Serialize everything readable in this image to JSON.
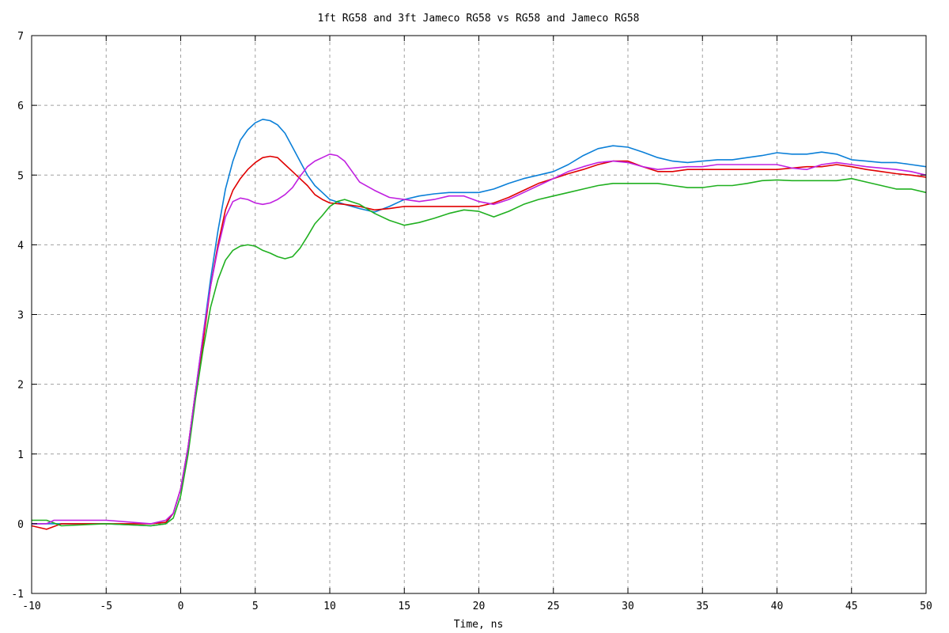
{
  "chart_data": {
    "type": "line",
    "title": "1ft RG58 and 3ft Jameco RG58 vs RG58 and Jameco RG58",
    "xlabel": "Time, ns",
    "ylabel": "",
    "xlim": [
      -10,
      50
    ],
    "ylim": [
      -1,
      7
    ],
    "x_ticks": [
      "-10",
      "-5",
      "0",
      "5",
      "10",
      "15",
      "20",
      "25",
      "30",
      "35",
      "40",
      "45",
      "50"
    ],
    "y_ticks": [
      "-1",
      "0",
      "1",
      "2",
      "3",
      "4",
      "5",
      "6",
      "7"
    ],
    "grid": true,
    "legend": "none",
    "series": [
      {
        "color": "#0a7fd8",
        "points": [
          [
            -10,
            0.0
          ],
          [
            -5,
            0.0
          ],
          [
            -2,
            -0.03
          ],
          [
            -1,
            0.0
          ],
          [
            -0.5,
            0.15
          ],
          [
            0,
            0.5
          ],
          [
            0.5,
            1.1
          ],
          [
            1,
            1.9
          ],
          [
            1.5,
            2.7
          ],
          [
            2,
            3.5
          ],
          [
            2.5,
            4.2
          ],
          [
            3,
            4.8
          ],
          [
            3.5,
            5.2
          ],
          [
            4,
            5.5
          ],
          [
            4.5,
            5.65
          ],
          [
            5,
            5.75
          ],
          [
            5.5,
            5.8
          ],
          [
            6,
            5.78
          ],
          [
            6.5,
            5.72
          ],
          [
            7,
            5.6
          ],
          [
            7.5,
            5.4
          ],
          [
            8,
            5.2
          ],
          [
            8.5,
            5.0
          ],
          [
            9,
            4.85
          ],
          [
            9.5,
            4.75
          ],
          [
            10,
            4.65
          ],
          [
            11,
            4.58
          ],
          [
            12,
            4.52
          ],
          [
            13,
            4.47
          ],
          [
            14,
            4.55
          ],
          [
            15,
            4.65
          ],
          [
            16,
            4.7
          ],
          [
            17,
            4.73
          ],
          [
            18,
            4.75
          ],
          [
            19,
            4.75
          ],
          [
            20,
            4.75
          ],
          [
            21,
            4.8
          ],
          [
            22,
            4.88
          ],
          [
            23,
            4.95
          ],
          [
            24,
            5.0
          ],
          [
            25,
            5.05
          ],
          [
            26,
            5.15
          ],
          [
            27,
            5.28
          ],
          [
            28,
            5.38
          ],
          [
            29,
            5.42
          ],
          [
            30,
            5.4
          ],
          [
            31,
            5.33
          ],
          [
            32,
            5.25
          ],
          [
            33,
            5.2
          ],
          [
            34,
            5.18
          ],
          [
            35,
            5.2
          ],
          [
            36,
            5.22
          ],
          [
            37,
            5.22
          ],
          [
            38,
            5.25
          ],
          [
            39,
            5.28
          ],
          [
            40,
            5.32
          ],
          [
            41,
            5.3
          ],
          [
            42,
            5.3
          ],
          [
            43,
            5.33
          ],
          [
            44,
            5.3
          ],
          [
            45,
            5.22
          ],
          [
            46,
            5.2
          ],
          [
            47,
            5.18
          ],
          [
            48,
            5.18
          ],
          [
            49,
            5.15
          ],
          [
            50,
            5.12
          ]
        ]
      },
      {
        "color": "#e00000",
        "points": [
          [
            -10,
            -0.03
          ],
          [
            -9,
            -0.08
          ],
          [
            -8,
            0.0
          ],
          [
            -5,
            0.0
          ],
          [
            -2,
            0.0
          ],
          [
            -1,
            0.02
          ],
          [
            -0.5,
            0.15
          ],
          [
            0,
            0.5
          ],
          [
            0.5,
            1.1
          ],
          [
            1,
            1.9
          ],
          [
            1.5,
            2.6
          ],
          [
            2,
            3.4
          ],
          [
            2.5,
            4.0
          ],
          [
            3,
            4.5
          ],
          [
            3.5,
            4.78
          ],
          [
            4,
            4.95
          ],
          [
            4.5,
            5.08
          ],
          [
            5,
            5.18
          ],
          [
            5.5,
            5.25
          ],
          [
            6,
            5.27
          ],
          [
            6.5,
            5.25
          ],
          [
            7,
            5.15
          ],
          [
            7.5,
            5.05
          ],
          [
            8,
            4.95
          ],
          [
            8.5,
            4.85
          ],
          [
            9,
            4.72
          ],
          [
            9.5,
            4.65
          ],
          [
            10,
            4.6
          ],
          [
            11,
            4.58
          ],
          [
            12,
            4.55
          ],
          [
            13,
            4.5
          ],
          [
            14,
            4.52
          ],
          [
            15,
            4.55
          ],
          [
            16,
            4.55
          ],
          [
            17,
            4.55
          ],
          [
            18,
            4.55
          ],
          [
            19,
            4.55
          ],
          [
            20,
            4.55
          ],
          [
            21,
            4.6
          ],
          [
            22,
            4.68
          ],
          [
            23,
            4.78
          ],
          [
            24,
            4.88
          ],
          [
            25,
            4.95
          ],
          [
            26,
            5.02
          ],
          [
            27,
            5.08
          ],
          [
            28,
            5.15
          ],
          [
            29,
            5.2
          ],
          [
            30,
            5.2
          ],
          [
            31,
            5.12
          ],
          [
            32,
            5.05
          ],
          [
            33,
            5.05
          ],
          [
            34,
            5.08
          ],
          [
            35,
            5.08
          ],
          [
            36,
            5.08
          ],
          [
            37,
            5.08
          ],
          [
            38,
            5.08
          ],
          [
            39,
            5.08
          ],
          [
            40,
            5.08
          ],
          [
            41,
            5.1
          ],
          [
            42,
            5.12
          ],
          [
            43,
            5.12
          ],
          [
            44,
            5.15
          ],
          [
            45,
            5.12
          ],
          [
            46,
            5.08
          ],
          [
            47,
            5.05
          ],
          [
            48,
            5.02
          ],
          [
            49,
            5.0
          ],
          [
            50,
            4.97
          ]
        ]
      },
      {
        "color": "#20b020",
        "points": [
          [
            -10,
            0.05
          ],
          [
            -9,
            0.05
          ],
          [
            -8,
            -0.03
          ],
          [
            -5,
            0.0
          ],
          [
            -2,
            -0.03
          ],
          [
            -1,
            0.0
          ],
          [
            -0.5,
            0.08
          ],
          [
            0,
            0.4
          ],
          [
            0.5,
            1.0
          ],
          [
            1,
            1.8
          ],
          [
            1.5,
            2.5
          ],
          [
            2,
            3.1
          ],
          [
            2.5,
            3.5
          ],
          [
            3,
            3.78
          ],
          [
            3.5,
            3.92
          ],
          [
            4,
            3.98
          ],
          [
            4.5,
            4.0
          ],
          [
            5,
            3.98
          ],
          [
            5.5,
            3.92
          ],
          [
            6,
            3.88
          ],
          [
            6.5,
            3.83
          ],
          [
            7,
            3.8
          ],
          [
            7.5,
            3.83
          ],
          [
            8,
            3.95
          ],
          [
            8.5,
            4.12
          ],
          [
            9,
            4.3
          ],
          [
            9.5,
            4.42
          ],
          [
            10,
            4.55
          ],
          [
            10.5,
            4.62
          ],
          [
            11,
            4.65
          ],
          [
            12,
            4.58
          ],
          [
            13,
            4.45
          ],
          [
            14,
            4.35
          ],
          [
            15,
            4.28
          ],
          [
            16,
            4.32
          ],
          [
            17,
            4.38
          ],
          [
            18,
            4.45
          ],
          [
            19,
            4.5
          ],
          [
            20,
            4.48
          ],
          [
            21,
            4.4
          ],
          [
            22,
            4.48
          ],
          [
            23,
            4.58
          ],
          [
            24,
            4.65
          ],
          [
            25,
            4.7
          ],
          [
            26,
            4.75
          ],
          [
            27,
            4.8
          ],
          [
            28,
            4.85
          ],
          [
            29,
            4.88
          ],
          [
            30,
            4.88
          ],
          [
            31,
            4.88
          ],
          [
            32,
            4.88
          ],
          [
            33,
            4.85
          ],
          [
            34,
            4.82
          ],
          [
            35,
            4.82
          ],
          [
            36,
            4.85
          ],
          [
            37,
            4.85
          ],
          [
            38,
            4.88
          ],
          [
            39,
            4.92
          ],
          [
            40,
            4.93
          ],
          [
            41,
            4.92
          ],
          [
            42,
            4.92
          ],
          [
            43,
            4.92
          ],
          [
            44,
            4.92
          ],
          [
            45,
            4.95
          ],
          [
            46,
            4.9
          ],
          [
            47,
            4.85
          ],
          [
            48,
            4.8
          ],
          [
            49,
            4.8
          ],
          [
            50,
            4.75
          ]
        ]
      },
      {
        "color": "#c020e0",
        "points": [
          [
            -10,
            0.0
          ],
          [
            -9,
            0.0
          ],
          [
            -8.5,
            0.05
          ],
          [
            -5,
            0.05
          ],
          [
            -2,
            0.0
          ],
          [
            -1,
            0.05
          ],
          [
            -0.5,
            0.15
          ],
          [
            0,
            0.5
          ],
          [
            0.5,
            1.1
          ],
          [
            1,
            1.9
          ],
          [
            1.5,
            2.7
          ],
          [
            2,
            3.4
          ],
          [
            2.5,
            3.95
          ],
          [
            3,
            4.4
          ],
          [
            3.5,
            4.62
          ],
          [
            4,
            4.67
          ],
          [
            4.5,
            4.65
          ],
          [
            5,
            4.6
          ],
          [
            5.5,
            4.58
          ],
          [
            6,
            4.6
          ],
          [
            6.5,
            4.65
          ],
          [
            7,
            4.72
          ],
          [
            7.5,
            4.82
          ],
          [
            8,
            4.98
          ],
          [
            8.5,
            5.12
          ],
          [
            9,
            5.2
          ],
          [
            9.5,
            5.25
          ],
          [
            10,
            5.3
          ],
          [
            10.5,
            5.28
          ],
          [
            11,
            5.2
          ],
          [
            11.5,
            5.05
          ],
          [
            12,
            4.9
          ],
          [
            13,
            4.78
          ],
          [
            14,
            4.68
          ],
          [
            15,
            4.65
          ],
          [
            16,
            4.62
          ],
          [
            17,
            4.65
          ],
          [
            18,
            4.7
          ],
          [
            19,
            4.7
          ],
          [
            20,
            4.62
          ],
          [
            21,
            4.58
          ],
          [
            22,
            4.65
          ],
          [
            23,
            4.75
          ],
          [
            24,
            4.85
          ],
          [
            25,
            4.95
          ],
          [
            26,
            5.05
          ],
          [
            27,
            5.12
          ],
          [
            28,
            5.18
          ],
          [
            29,
            5.2
          ],
          [
            30,
            5.18
          ],
          [
            31,
            5.12
          ],
          [
            32,
            5.08
          ],
          [
            33,
            5.1
          ],
          [
            34,
            5.12
          ],
          [
            35,
            5.12
          ],
          [
            36,
            5.15
          ],
          [
            37,
            5.15
          ],
          [
            38,
            5.15
          ],
          [
            39,
            5.15
          ],
          [
            40,
            5.15
          ],
          [
            41,
            5.1
          ],
          [
            42,
            5.08
          ],
          [
            43,
            5.15
          ],
          [
            44,
            5.18
          ],
          [
            45,
            5.15
          ],
          [
            46,
            5.12
          ],
          [
            47,
            5.1
          ],
          [
            48,
            5.08
          ],
          [
            49,
            5.05
          ],
          [
            50,
            5.0
          ]
        ]
      }
    ]
  }
}
